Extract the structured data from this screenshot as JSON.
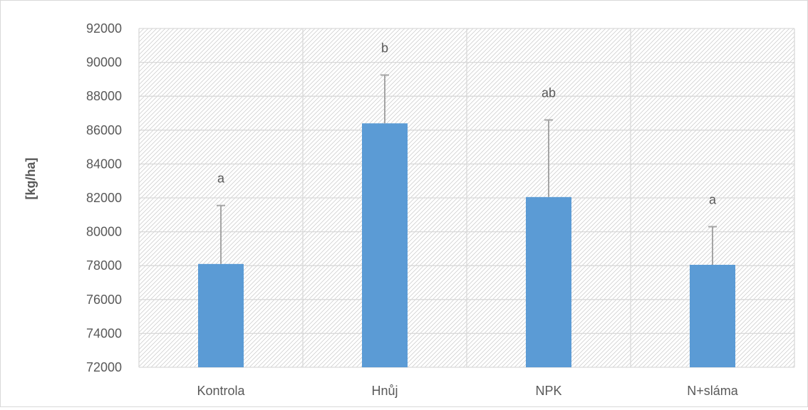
{
  "chart_data": {
    "type": "bar",
    "categories": [
      "Kontrola",
      "Hnůj",
      "NPK",
      "N+sláma"
    ],
    "values": [
      78100,
      86400,
      82050,
      78050
    ],
    "error_plus": [
      3450,
      2850,
      4550,
      2250
    ],
    "significance_labels": [
      "a",
      "b",
      "ab",
      "a"
    ],
    "title": "",
    "xlabel": "",
    "ylabel": "[kg/ha]",
    "ylim": [
      72000,
      92000
    ],
    "ytick_step": 2000,
    "y_tick_labels": [
      "72000",
      "74000",
      "76000",
      "78000",
      "80000",
      "82000",
      "84000",
      "86000",
      "88000",
      "90000",
      "92000"
    ],
    "grid": true,
    "plot_background": "hatched light gray",
    "legend": "none",
    "colors": {
      "bar": "#5b9bd5",
      "error_bar": "#a5a5a5",
      "grid": "#d9d9d9",
      "hatch": "#c8c8c8",
      "text": "#595959"
    }
  }
}
